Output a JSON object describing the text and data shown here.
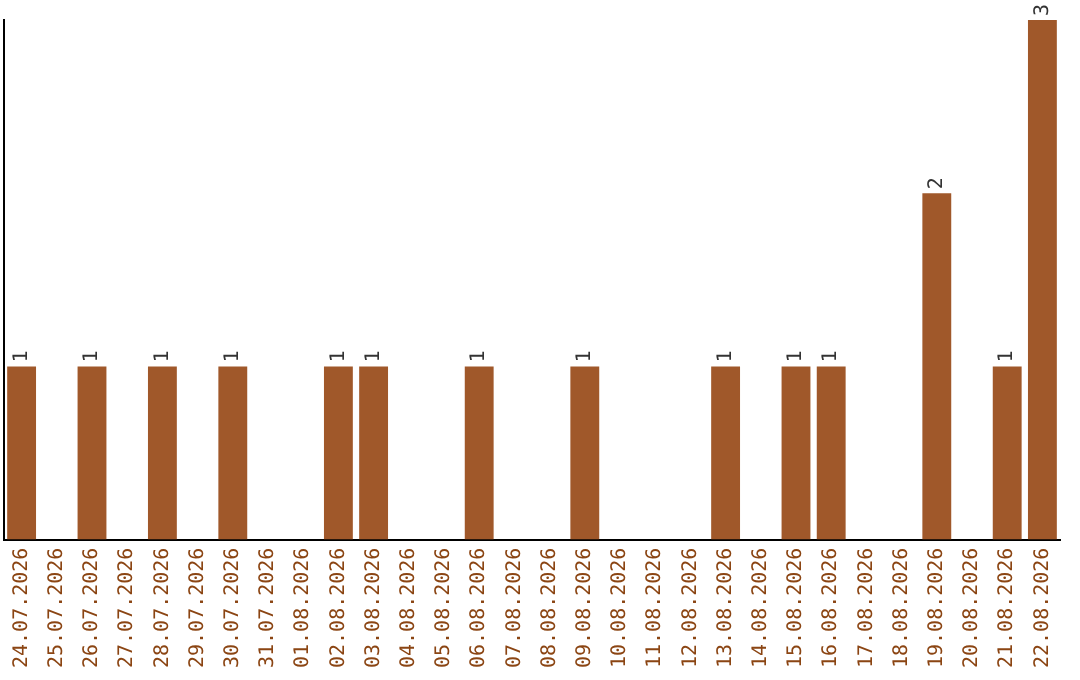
{
  "chart_data": {
    "type": "bar",
    "categories": [
      "24.07.2026",
      "25.07.2026",
      "26.07.2026",
      "27.07.2026",
      "28.07.2026",
      "29.07.2026",
      "30.07.2026",
      "31.07.2026",
      "01.08.2026",
      "02.08.2026",
      "03.08.2026",
      "04.08.2026",
      "05.08.2026",
      "06.08.2026",
      "07.08.2026",
      "08.08.2026",
      "09.08.2026",
      "10.08.2026",
      "11.08.2026",
      "12.08.2026",
      "13.08.2026",
      "14.08.2026",
      "15.08.2026",
      "16.08.2026",
      "17.08.2026",
      "18.08.2026",
      "19.08.2026",
      "20.08.2026",
      "21.08.2026",
      "22.08.2026"
    ],
    "values": [
      1,
      0,
      1,
      0,
      1,
      0,
      1,
      0,
      0,
      1,
      1,
      0,
      0,
      1,
      0,
      0,
      1,
      0,
      0,
      0,
      1,
      0,
      1,
      1,
      0,
      0,
      2,
      0,
      1,
      3
    ],
    "value_labels": [
      "1",
      null,
      "1",
      null,
      "1",
      null,
      "1",
      null,
      null,
      "1",
      "1",
      null,
      null,
      "1",
      null,
      null,
      "1",
      null,
      null,
      null,
      "1",
      null,
      "1",
      "1",
      null,
      null,
      "2",
      null,
      "1",
      "3"
    ],
    "color": "#a0582a",
    "ylim": [
      0,
      3
    ],
    "tick_labels": "x",
    "grid": false,
    "legend": false
  }
}
